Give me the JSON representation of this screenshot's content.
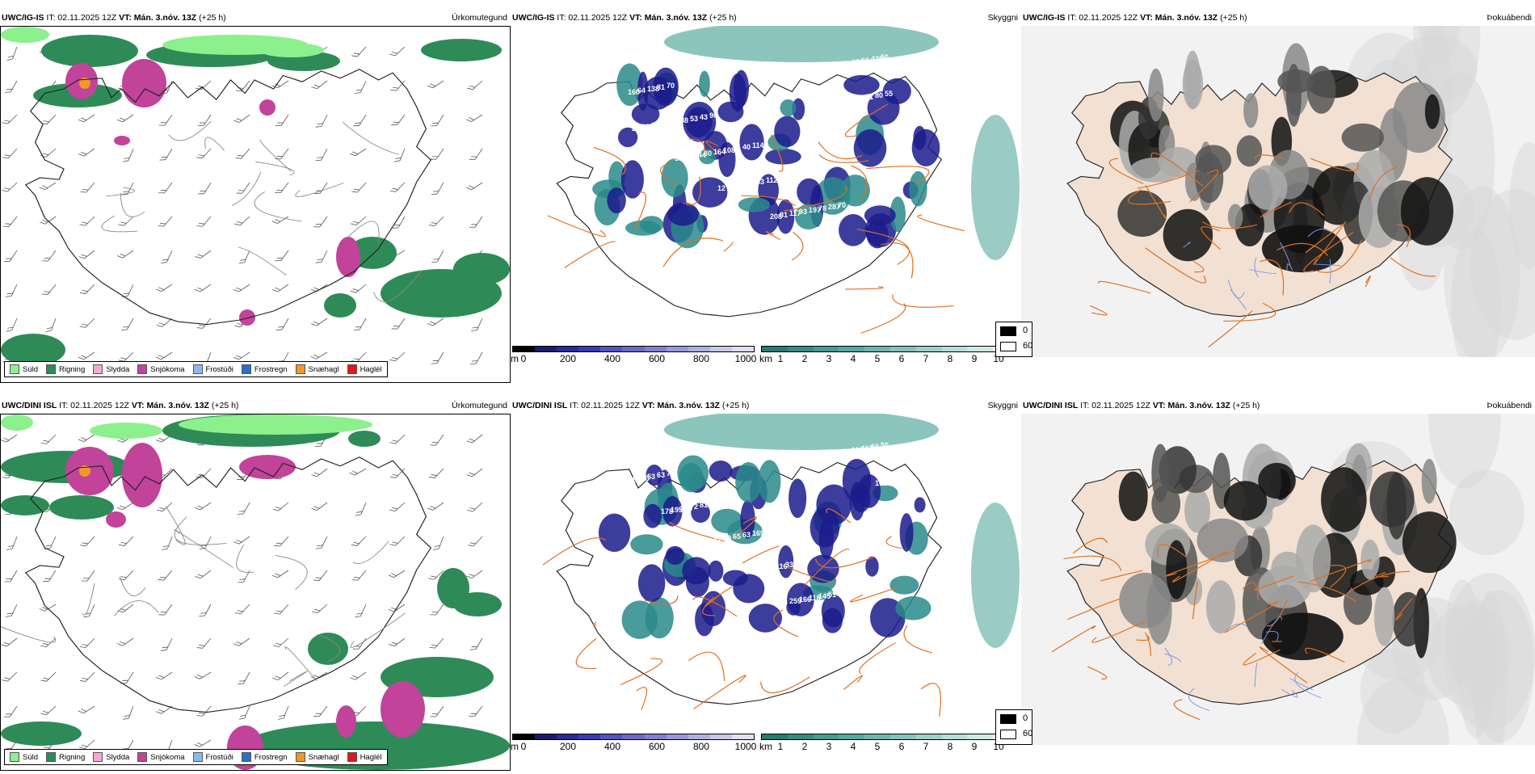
{
  "colors": {
    "rain": "#2e8b57",
    "drizzle": "#8cf08c",
    "sleet": "#f4a9d8",
    "snow": "#c1439a",
    "freezing_drizzle": "#8ab8f0",
    "freezing_rain": "#2a6fc8",
    "snow_pellets": "#f0982a",
    "hail": "#e4161c",
    "cloud_dark": "#1b1b8c",
    "cloud_teal": "#2a8a8a",
    "roads": "#e07020",
    "land_tan": "#f2e1d2"
  },
  "rows": [
    {
      "model": "UWC/IG-IS",
      "it": " IT: 02.11.2025 12Z ",
      "vt_label": "VT:",
      "vt": " Mán. 3.nóv. 13Z",
      "lead": " (+25 h)",
      "titles": {
        "precip": "Úrkomutegund",
        "visibility": "Skyggni",
        "cloud": "Þokuábendi"
      },
      "vis_labels": [
        "65",
        "70",
        "96",
        "114",
        "13",
        "70",
        "50",
        "81",
        "43",
        "40",
        "386",
        "287",
        "428",
        "138",
        "53",
        "51",
        "56",
        "78",
        "66",
        "64",
        "88",
        "108",
        "112",
        "197",
        "172",
        "160",
        "121",
        "164",
        "33",
        "93",
        "75",
        "55",
        "187",
        "80",
        "96",
        "117",
        "129",
        "80",
        "65",
        "144",
        "63",
        "81",
        "70",
        "91",
        "68",
        "97",
        "117",
        "208",
        "151",
        "123",
        "237",
        "38",
        "12"
      ]
    },
    {
      "model": "UWC/DINI ISL",
      "it": " IT: 02.11.2025 12Z ",
      "vt_label": "VT:",
      "vt": " Mán. 3.nóv. 13Z",
      "lead": " (+25 h)",
      "titles": {
        "precip": "Úrkomutegund",
        "visibility": "Skyggni",
        "cloud": "Þokuábendi"
      },
      "vis_labels": [
        "109",
        "77",
        "150",
        "169",
        "91",
        "310",
        "50",
        "63",
        "81",
        "63",
        "33",
        "51",
        "60",
        "53",
        "72",
        "65",
        "116",
        "145",
        "117",
        "103",
        "236",
        "79",
        "119",
        "118",
        "112",
        "91",
        "195",
        "17",
        "94",
        "166",
        "202",
        "151",
        "178",
        "54",
        "448",
        "259",
        "2",
        "171"
      ]
    }
  ],
  "ptype_legend": [
    "Súld",
    "Rigning",
    "Slydda",
    "Snjókoma",
    "Frostúði",
    "Frostregn",
    "Snæhagl",
    "Haglél"
  ],
  "scale_m": {
    "unit": "m",
    "ticks": [
      "0",
      "200",
      "400",
      "600",
      "800",
      "1000"
    ]
  },
  "scale_km": {
    "unit": "km",
    "ticks": [
      "1",
      "2",
      "3",
      "4",
      "5",
      "6",
      "7",
      "8",
      "9",
      "10"
    ]
  },
  "cloud_legend": {
    "top": "0",
    "bottom": "60"
  }
}
